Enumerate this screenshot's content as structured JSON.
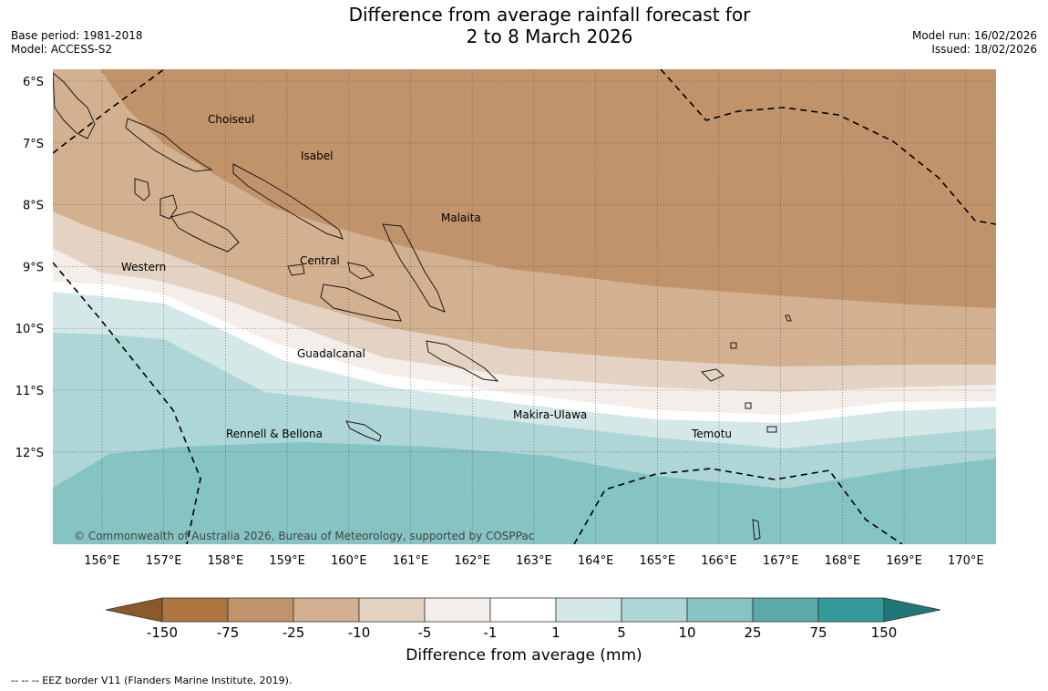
{
  "title": {
    "line1": "Difference from average rainfall forecast for",
    "line2": "2 to 8 March 2026"
  },
  "meta": {
    "base_period": "Base period: 1981-2018",
    "model": "Model: ACCESS-S2",
    "model_run": "Model run: 16/02/2026",
    "issued": "Issued: 18/02/2026"
  },
  "axes": {
    "lat_labels": [
      "6°S",
      "7°S",
      "8°S",
      "9°S",
      "10°S",
      "11°S",
      "12°S"
    ],
    "lon_labels": [
      "156°E",
      "157°E",
      "158°E",
      "159°E",
      "160°E",
      "161°E",
      "162°E",
      "163°E",
      "164°E",
      "165°E",
      "166°E",
      "167°E",
      "168°E",
      "169°E",
      "170°E"
    ]
  },
  "places": [
    "Choiseul",
    "Isabel",
    "Malaita",
    "Western",
    "Central",
    "Guadalcanal",
    "Makira-Ulawa",
    "Temotu",
    "Rennell & Bellona"
  ],
  "copyright": "© Commonwealth of Australia 2026, Bureau of Meteorology, supported by COSPPac",
  "colorbar": {
    "title": "Difference from average (mm)",
    "ticks": [
      "-150",
      "-75",
      "-25",
      "-10",
      "-5",
      "-1",
      "1",
      "5",
      "10",
      "25",
      "75",
      "150"
    ],
    "colors": [
      "#8b5a2b",
      "#ad7542",
      "#c1936a",
      "#d3b08f",
      "#e4d3c3",
      "#f3eee9",
      "#ffffff",
      "#d5e8e8",
      "#aed6d6",
      "#86c3c3",
      "#5baaaa",
      "#34999a",
      "#217777"
    ]
  },
  "footnote": "--  --  -- EEZ border V11 (Flanders Marine Institute, 2019)."
}
